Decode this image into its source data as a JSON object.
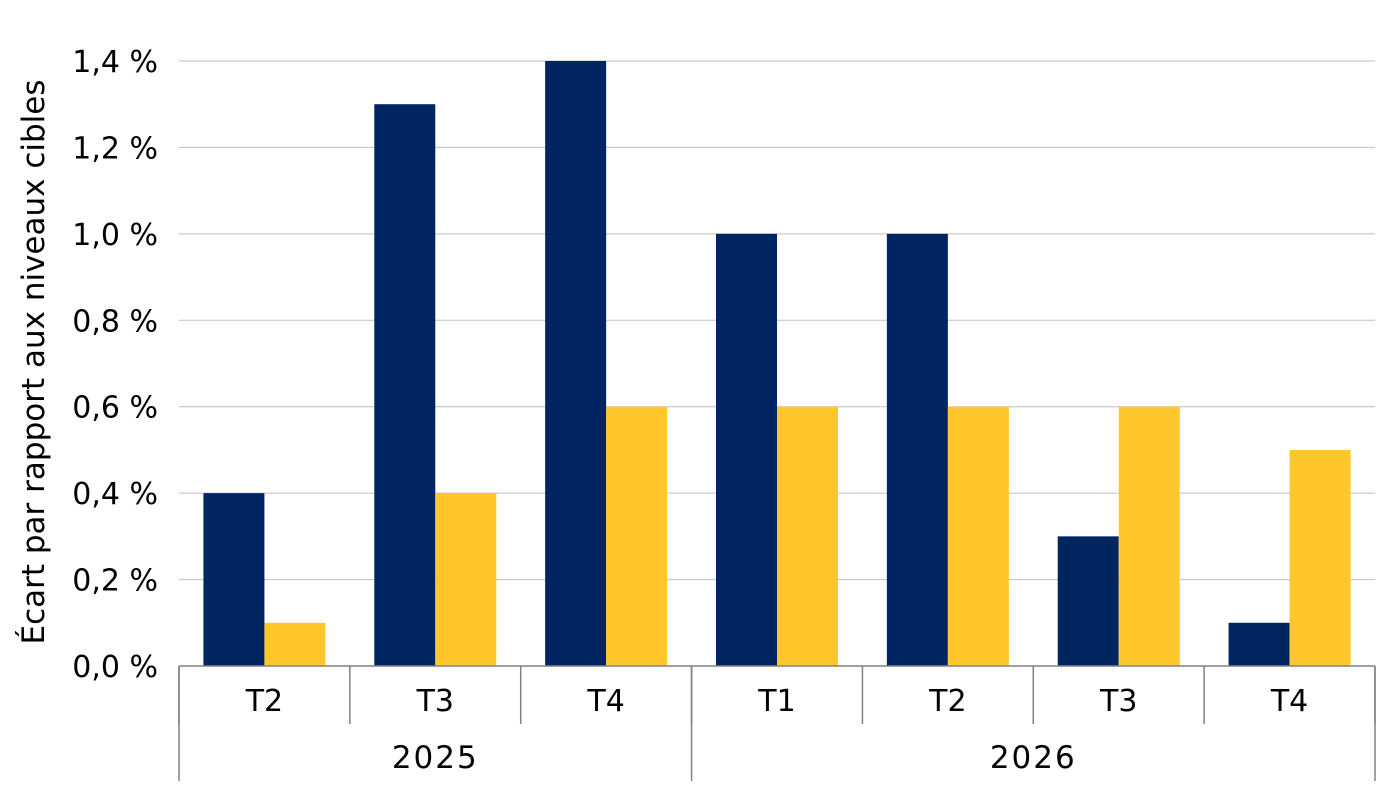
{
  "chart_data": {
    "type": "bar",
    "ylabel": "Écart par rapport aux niveaux cibles",
    "xlabel": "",
    "title": "",
    "ylim": [
      0,
      1.4
    ],
    "yticks": [
      0.0,
      0.2,
      0.4,
      0.6,
      0.8,
      1.0,
      1.2,
      1.4
    ],
    "ytick_labels": [
      "0,0 %",
      "0,2 %",
      "0,4 %",
      "0,6 %",
      "0,8 %",
      "1,0 %",
      "1,2 %",
      "1,4 %"
    ],
    "categories": [
      "T2",
      "T3",
      "T4",
      "T1",
      "T2",
      "T3",
      "T4"
    ],
    "groups": [
      {
        "label": "2025",
        "categories": [
          "T2",
          "T3",
          "T4"
        ]
      },
      {
        "label": "2026",
        "categories": [
          "T1",
          "T2",
          "T3",
          "T4"
        ]
      }
    ],
    "series": [
      {
        "color": "#002561",
        "values": [
          0.4,
          1.3,
          1.4,
          1.0,
          1.0,
          0.3,
          0.1
        ]
      },
      {
        "color": "#FFC72C",
        "values": [
          0.1,
          0.4,
          0.6,
          0.6,
          0.6,
          0.6,
          0.5
        ]
      }
    ],
    "grid": true,
    "legend": "none"
  }
}
